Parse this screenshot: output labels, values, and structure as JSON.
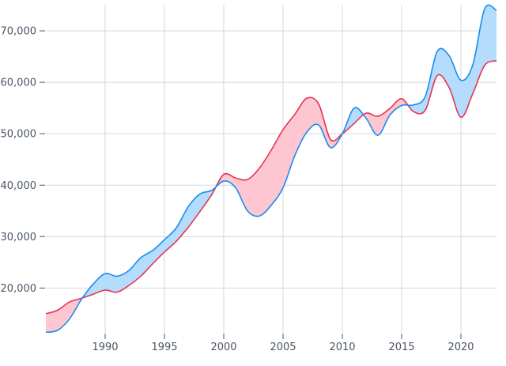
{
  "chart_data": {
    "type": "area",
    "title": "",
    "xlabel": "",
    "ylabel": "",
    "xlim": [
      1985,
      2023
    ],
    "ylim": [
      11300,
      76000
    ],
    "grid": true,
    "x_ticks": [
      1990,
      1995,
      2000,
      2005,
      2010,
      2015,
      2020
    ],
    "x_tick_labels": [
      "1990",
      "1995",
      "2000",
      "2005",
      "2010",
      "2015",
      "2020"
    ],
    "y_ticks": [
      20000,
      30000,
      40000,
      50000,
      60000,
      70000
    ],
    "y_tick_labels": [
      "20,000",
      "30,000",
      "40,000",
      "50,000",
      "60,000",
      "70,000"
    ],
    "fill_between": "difference band, blue where blue series is higher, pink where red series is higher",
    "x": [
      1985,
      1986,
      1987,
      1988,
      1989,
      1990,
      1991,
      1992,
      1993,
      1994,
      1995,
      1996,
      1997,
      1998,
      1999,
      2000,
      2001,
      2002,
      2003,
      2004,
      2005,
      2006,
      2007,
      2008,
      2009,
      2010,
      2011,
      2012,
      2013,
      2014,
      2015,
      2016,
      2017,
      2018,
      2019,
      2020,
      2021,
      2022,
      2023
    ],
    "series": [
      {
        "color": "#1a8cf0",
        "fill": "#b3dcfd",
        "values": [
          11400,
          11800,
          14000,
          17800,
          20800,
          22800,
          22300,
          23400,
          25900,
          27300,
          29400,
          31700,
          35800,
          38300,
          39000,
          40800,
          39500,
          35000,
          34000,
          36100,
          39500,
          45800,
          50300,
          51700,
          47300,
          50000,
          55000,
          53000,
          49700,
          53600,
          55500,
          55600,
          57300,
          66000,
          65200,
          60400,
          63400,
          74300,
          74000
        ]
      },
      {
        "color": "#e8334f",
        "fill": "#fec6d1",
        "values": [
          15000,
          15700,
          17300,
          18000,
          18800,
          19600,
          19200,
          20500,
          22300,
          24700,
          27000,
          29100,
          31800,
          34900,
          38200,
          42100,
          41400,
          41100,
          43300,
          46800,
          50800,
          53800,
          56900,
          55800,
          48900,
          50000,
          52000,
          54000,
          53400,
          54900,
          56800,
          54300,
          54600,
          61300,
          59000,
          53200,
          57800,
          63300,
          64200
        ]
      }
    ]
  }
}
